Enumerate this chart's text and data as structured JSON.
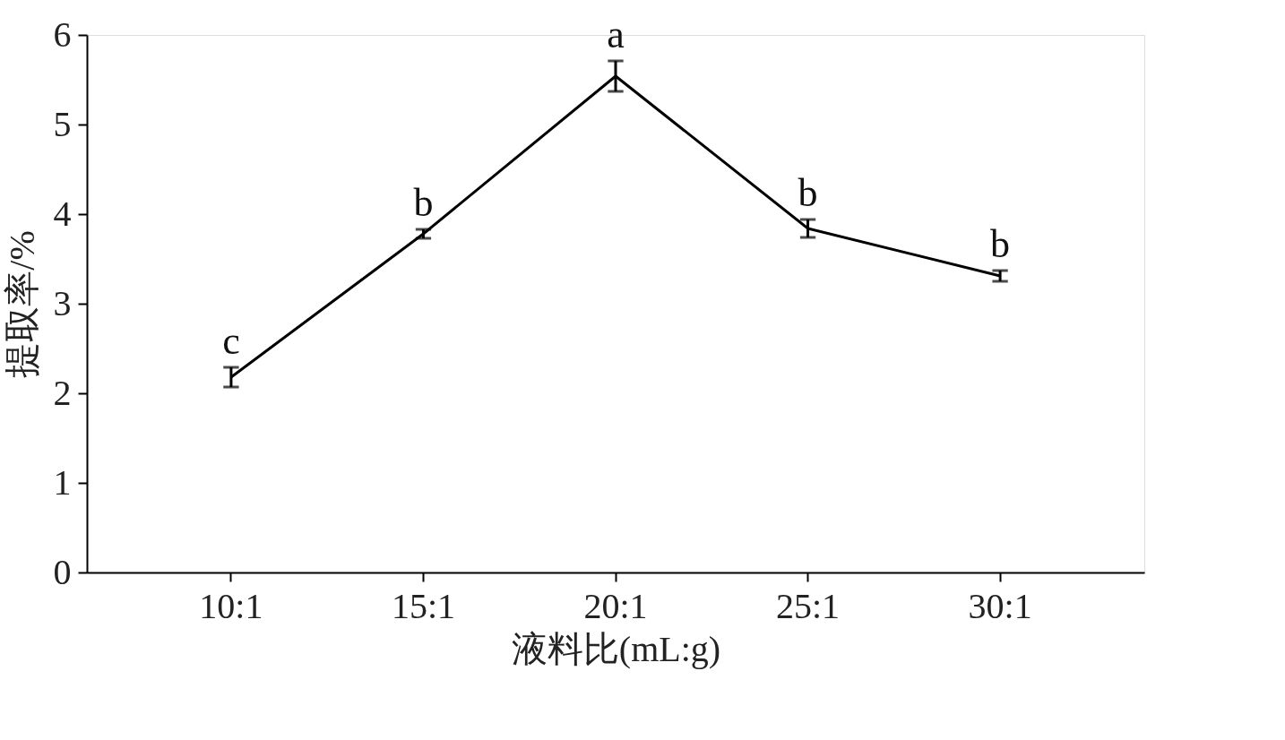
{
  "chart_data": {
    "type": "line",
    "xlabel": "液料比(mL:g)",
    "ylabel": "提取率/%",
    "categories": [
      "10:1",
      "15:1",
      "20:1",
      "25:1",
      "30:1"
    ],
    "series": [
      {
        "color": "#000000",
        "values": [
          2.18,
          3.78,
          5.54,
          3.84,
          3.31
        ],
        "errors": [
          0.11,
          0.05,
          0.17,
          0.1,
          0.06
        ]
      }
    ],
    "ylim": [
      0,
      6
    ],
    "yticks": [
      0,
      1,
      2,
      3,
      4,
      5,
      6
    ],
    "grid": false,
    "marker": "none",
    "line_style": "solid",
    "annotations": [
      {
        "text": "c",
        "x": "10:1",
        "y": 2.18
      },
      {
        "text": "b",
        "x": "15:1",
        "y": 3.78
      },
      {
        "text": "a",
        "x": "20:1",
        "y": 5.54
      },
      {
        "text": "b",
        "x": "25:1",
        "y": 3.84
      },
      {
        "text": "b",
        "x": "30:1",
        "y": 3.31
      }
    ]
  }
}
